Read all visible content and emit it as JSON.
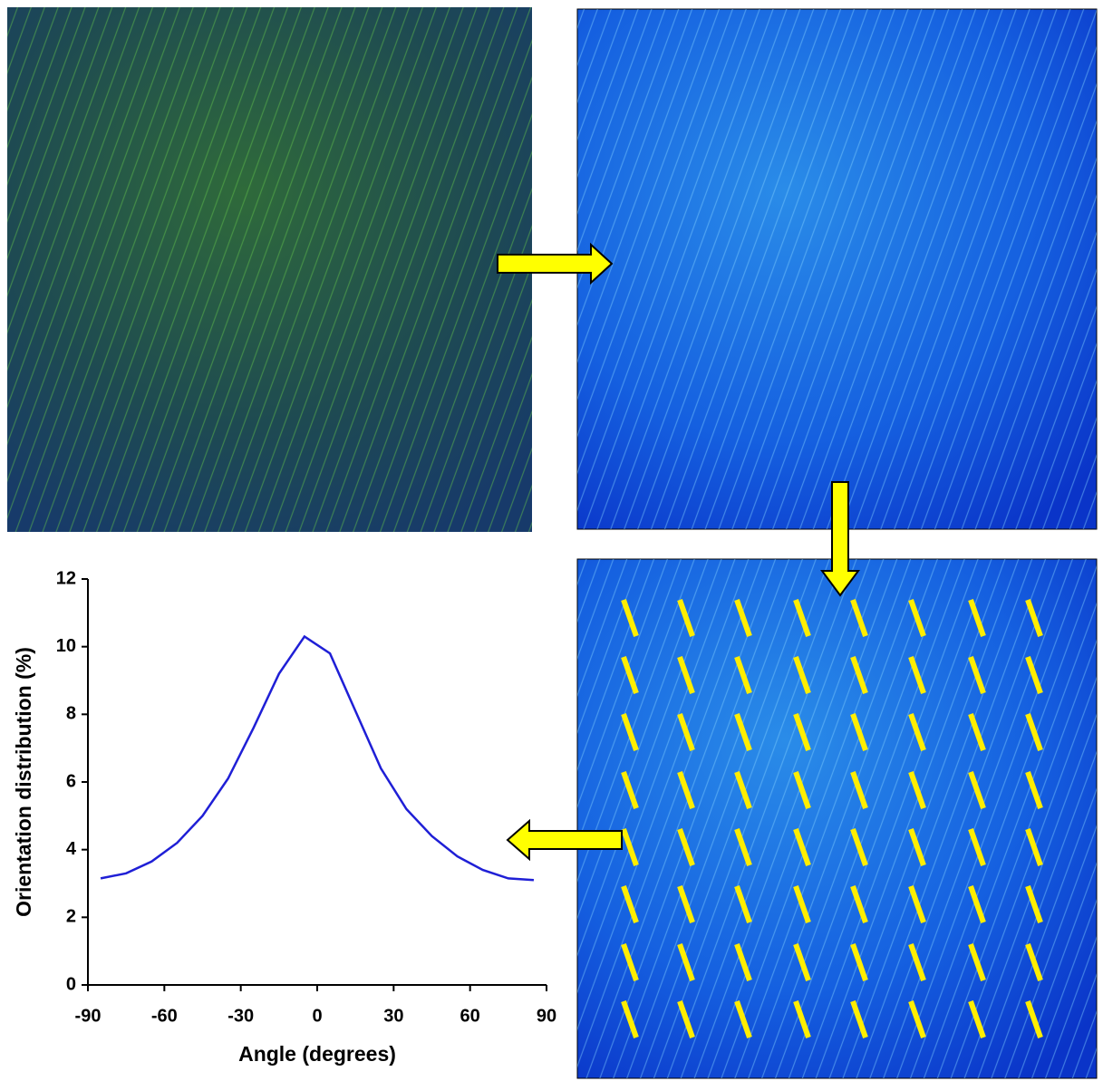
{
  "chart_data": {
    "type": "line",
    "x_label": "Angle (degrees)",
    "y_label": "Orientation distribution (%)",
    "x": [
      -85,
      -75,
      -65,
      -55,
      -45,
      -35,
      -25,
      -15,
      -5,
      5,
      15,
      25,
      35,
      45,
      55,
      65,
      75,
      85
    ],
    "series": [
      {
        "name": "Orientation distribution",
        "color": "#1f1fd6",
        "values": [
          3.15,
          3.3,
          3.65,
          4.2,
          5.0,
          6.1,
          7.6,
          9.2,
          10.3,
          9.8,
          8.1,
          6.4,
          5.2,
          4.4,
          3.8,
          3.4,
          3.15,
          3.1
        ]
      }
    ],
    "xlim": [
      -90,
      90
    ],
    "xticks": [
      -90,
      -60,
      -30,
      0,
      30,
      60,
      90
    ],
    "ylim": [
      0,
      12
    ],
    "yticks": [
      0,
      2,
      4,
      6,
      8,
      10,
      12
    ]
  }
}
